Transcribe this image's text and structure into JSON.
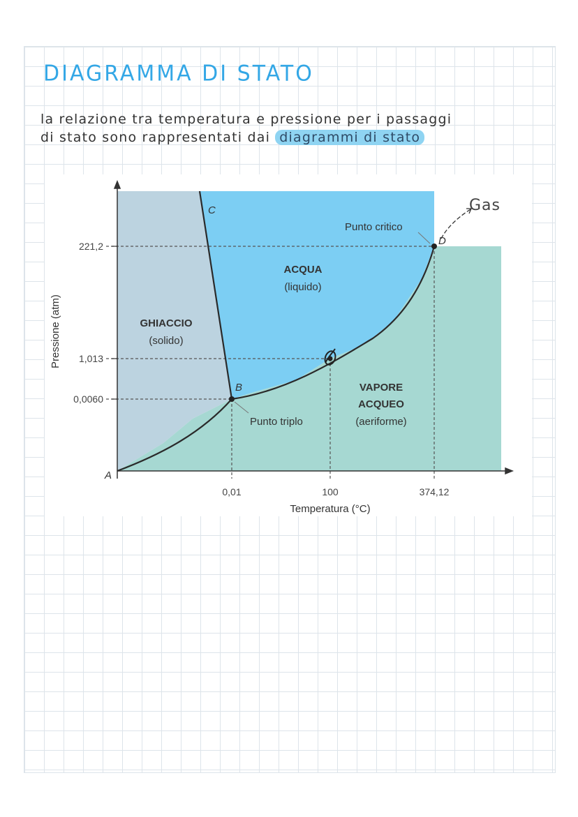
{
  "header": {
    "title": "DIAGRAMMA DI STATO",
    "text_line1": "la relazione tra temperatura e pressione per i passaggi",
    "text_line2_start": "di stato sono rappresentati dai",
    "text_line2_highlight": "diagrammi di stato"
  },
  "diagram": {
    "y_axis_label": "Pressione (atm)",
    "x_axis_label": "Temperatura (°C)",
    "y_ticks": [
      "221,2",
      "1,013",
      "0,0060"
    ],
    "x_ticks": [
      "0,01",
      "100",
      "374,12"
    ],
    "regions": {
      "solid": {
        "name": "GHIACCIO",
        "sub": "(solido)",
        "color": "#bcd3e0"
      },
      "liquid": {
        "name": "ACQUA",
        "sub": "(liquido)",
        "color": "#7ccef3"
      },
      "gas": {
        "name1": "VAPORE",
        "name2": "ACQUEO",
        "sub": "(aeriforme)",
        "color": "#a6d8d2"
      }
    },
    "points": {
      "A": "A",
      "B": "B",
      "C": "C",
      "D": "D"
    },
    "labels": {
      "triple_point": "Punto triplo",
      "critical_point": "Punto critico"
    },
    "handwritten_note": "Gas"
  }
}
